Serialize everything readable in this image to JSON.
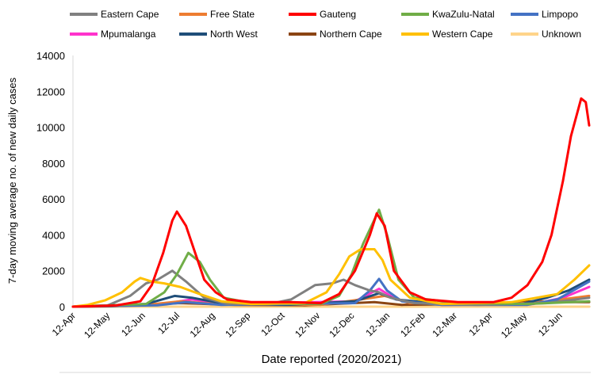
{
  "chart_data": {
    "type": "line",
    "title": "",
    "xlabel": "Date reported (2020/2021)",
    "ylabel": "7-day moving average no. of new daily cases",
    "x_range": [
      "2020-04-12",
      "2021-07-08"
    ],
    "ylim": [
      0,
      14000
    ],
    "y_ticks": [
      "0",
      "2000",
      "4000",
      "6000",
      "8000",
      "10000",
      "12000",
      "14000"
    ],
    "x_ticks": [
      {
        "label": "12-Apr",
        "date": "2020-04-12"
      },
      {
        "label": "12-May",
        "date": "2020-05-12"
      },
      {
        "label": "12-Jun",
        "date": "2020-06-12"
      },
      {
        "label": "12-Jul",
        "date": "2020-07-12"
      },
      {
        "label": "12-Aug",
        "date": "2020-08-12"
      },
      {
        "label": "12-Sep",
        "date": "2020-09-12"
      },
      {
        "label": "12-Oct",
        "date": "2020-10-12"
      },
      {
        "label": "12-Nov",
        "date": "2020-11-12"
      },
      {
        "label": "12-Dec",
        "date": "2020-12-12"
      },
      {
        "label": "12-Jan",
        "date": "2021-01-12"
      },
      {
        "label": "12-Feb",
        "date": "2021-02-12"
      },
      {
        "label": "12-Mar",
        "date": "2021-03-12"
      },
      {
        "label": "12-Apr",
        "date": "2021-04-12"
      },
      {
        "label": "12-May",
        "date": "2021-05-12"
      },
      {
        "label": "12-Jun",
        "date": "2021-06-12"
      }
    ],
    "grid": false,
    "legend_position": "top",
    "series": [
      {
        "name": "Eastern Cape",
        "color": "#808080",
        "points": [
          [
            "2020-04-12",
            0
          ],
          [
            "2020-05-12",
            60
          ],
          [
            "2020-06-01",
            600
          ],
          [
            "2020-06-15",
            1300
          ],
          [
            "2020-06-25",
            1500
          ],
          [
            "2020-07-08",
            2000
          ],
          [
            "2020-07-20",
            1400
          ],
          [
            "2020-08-05",
            500
          ],
          [
            "2020-08-25",
            150
          ],
          [
            "2020-10-01",
            150
          ],
          [
            "2020-10-20",
            400
          ],
          [
            "2020-11-10",
            1200
          ],
          [
            "2020-11-25",
            1300
          ],
          [
            "2020-12-05",
            1500
          ],
          [
            "2020-12-15",
            1200
          ],
          [
            "2020-12-28",
            900
          ],
          [
            "2021-01-05",
            800
          ],
          [
            "2021-01-15",
            500
          ],
          [
            "2021-02-05",
            200
          ],
          [
            "2021-04-01",
            100
          ],
          [
            "2021-06-01",
            200
          ],
          [
            "2021-07-08",
            500
          ]
        ]
      },
      {
        "name": "Free State",
        "color": "#ed7d31",
        "points": [
          [
            "2020-04-12",
            0
          ],
          [
            "2020-06-15",
            100
          ],
          [
            "2020-07-15",
            300
          ],
          [
            "2020-08-15",
            150
          ],
          [
            "2020-11-15",
            100
          ],
          [
            "2020-12-20",
            400
          ],
          [
            "2021-01-10",
            600
          ],
          [
            "2021-02-01",
            200
          ],
          [
            "2021-05-01",
            150
          ],
          [
            "2021-06-01",
            300
          ],
          [
            "2021-07-08",
            600
          ]
        ]
      },
      {
        "name": "Gauteng",
        "color": "#ff0000",
        "points": [
          [
            "2020-04-12",
            0
          ],
          [
            "2020-05-20",
            70
          ],
          [
            "2020-06-10",
            300
          ],
          [
            "2020-06-20",
            1200
          ],
          [
            "2020-06-30",
            3000
          ],
          [
            "2020-07-08",
            4800
          ],
          [
            "2020-07-12",
            5300
          ],
          [
            "2020-07-20",
            4500
          ],
          [
            "2020-07-28",
            3000
          ],
          [
            "2020-08-05",
            1500
          ],
          [
            "2020-08-15",
            800
          ],
          [
            "2020-08-25",
            400
          ],
          [
            "2020-09-15",
            250
          ],
          [
            "2020-10-20",
            250
          ],
          [
            "2020-11-15",
            200
          ],
          [
            "2020-12-01",
            700
          ],
          [
            "2020-12-15",
            2000
          ],
          [
            "2020-12-28",
            4000
          ],
          [
            "2021-01-03",
            5200
          ],
          [
            "2021-01-10",
            4500
          ],
          [
            "2021-01-18",
            2000
          ],
          [
            "2021-02-01",
            800
          ],
          [
            "2021-02-15",
            400
          ],
          [
            "2021-03-15",
            250
          ],
          [
            "2021-04-15",
            250
          ],
          [
            "2021-05-01",
            500
          ],
          [
            "2021-05-15",
            1200
          ],
          [
            "2021-05-28",
            2500
          ],
          [
            "2021-06-05",
            4000
          ],
          [
            "2021-06-15",
            7000
          ],
          [
            "2021-06-22",
            9500
          ],
          [
            "2021-07-01",
            11600
          ],
          [
            "2021-07-05",
            11400
          ],
          [
            "2021-07-08",
            10100
          ]
        ]
      },
      {
        "name": "KwaZulu-Natal",
        "color": "#70ad47",
        "points": [
          [
            "2020-04-12",
            0
          ],
          [
            "2020-06-15",
            150
          ],
          [
            "2020-07-01",
            800
          ],
          [
            "2020-07-12",
            1800
          ],
          [
            "2020-07-22",
            3000
          ],
          [
            "2020-08-01",
            2500
          ],
          [
            "2020-08-10",
            1500
          ],
          [
            "2020-08-22",
            500
          ],
          [
            "2020-09-15",
            200
          ],
          [
            "2020-11-15",
            150
          ],
          [
            "2020-12-01",
            600
          ],
          [
            "2020-12-12",
            1800
          ],
          [
            "2020-12-22",
            3500
          ],
          [
            "2021-01-05",
            5400
          ],
          [
            "2021-01-12",
            4000
          ],
          [
            "2021-01-22",
            1500
          ],
          [
            "2021-02-05",
            500
          ],
          [
            "2021-03-15",
            200
          ],
          [
            "2021-05-15",
            150
          ],
          [
            "2021-07-08",
            300
          ]
        ]
      },
      {
        "name": "Limpopo",
        "color": "#4472c4",
        "points": [
          [
            "2020-04-12",
            0
          ],
          [
            "2020-06-25",
            80
          ],
          [
            "2020-07-20",
            250
          ],
          [
            "2020-08-20",
            100
          ],
          [
            "2020-12-15",
            200
          ],
          [
            "2020-12-28",
            900
          ],
          [
            "2021-01-05",
            1550
          ],
          [
            "2021-01-12",
            900
          ],
          [
            "2021-01-25",
            300
          ],
          [
            "2021-03-01",
            100
          ],
          [
            "2021-05-15",
            100
          ],
          [
            "2021-06-10",
            400
          ],
          [
            "2021-07-08",
            1400
          ]
        ]
      },
      {
        "name": "Mpumalanga",
        "color": "#ff33cc",
        "points": [
          [
            "2020-04-12",
            0
          ],
          [
            "2020-06-25",
            100
          ],
          [
            "2020-07-25",
            400
          ],
          [
            "2020-08-25",
            150
          ],
          [
            "2020-12-15",
            300
          ],
          [
            "2021-01-05",
            1000
          ],
          [
            "2021-01-20",
            400
          ],
          [
            "2021-03-01",
            100
          ],
          [
            "2021-05-20",
            150
          ],
          [
            "2021-06-15",
            500
          ],
          [
            "2021-07-08",
            1100
          ]
        ]
      },
      {
        "name": "North West",
        "color": "#1f4e79",
        "points": [
          [
            "2020-04-12",
            0
          ],
          [
            "2020-06-15",
            150
          ],
          [
            "2020-07-10",
            600
          ],
          [
            "2020-07-25",
            500
          ],
          [
            "2020-08-20",
            200
          ],
          [
            "2020-10-15",
            100
          ],
          [
            "2020-12-15",
            300
          ],
          [
            "2021-01-05",
            750
          ],
          [
            "2021-01-20",
            400
          ],
          [
            "2021-03-01",
            150
          ],
          [
            "2021-05-10",
            150
          ],
          [
            "2021-06-01",
            500
          ],
          [
            "2021-06-20",
            900
          ],
          [
            "2021-07-08",
            1500
          ]
        ]
      },
      {
        "name": "Northern Cape",
        "color": "#8b4513",
        "points": [
          [
            "2020-04-12",
            0
          ],
          [
            "2020-05-15",
            20
          ],
          [
            "2020-07-15",
            200
          ],
          [
            "2020-09-01",
            100
          ],
          [
            "2020-11-01",
            80
          ],
          [
            "2021-01-01",
            250
          ],
          [
            "2021-01-25",
            100
          ],
          [
            "2021-04-01",
            150
          ],
          [
            "2021-05-20",
            300
          ],
          [
            "2021-06-15",
            250
          ],
          [
            "2021-07-08",
            250
          ]
        ]
      },
      {
        "name": "Western Cape",
        "color": "#ffc000",
        "points": [
          [
            "2020-04-12",
            0
          ],
          [
            "2020-04-25",
            100
          ],
          [
            "2020-05-10",
            350
          ],
          [
            "2020-05-25",
            800
          ],
          [
            "2020-06-05",
            1400
          ],
          [
            "2020-06-10",
            1600
          ],
          [
            "2020-06-20",
            1400
          ],
          [
            "2020-07-01",
            1300
          ],
          [
            "2020-07-15",
            1100
          ],
          [
            "2020-08-01",
            700
          ],
          [
            "2020-08-20",
            300
          ],
          [
            "2020-09-15",
            150
          ],
          [
            "2020-11-01",
            200
          ],
          [
            "2020-11-20",
            800
          ],
          [
            "2020-12-01",
            1800
          ],
          [
            "2020-12-10",
            2800
          ],
          [
            "2020-12-20",
            3200
          ],
          [
            "2021-01-01",
            3200
          ],
          [
            "2021-01-08",
            2600
          ],
          [
            "2021-01-15",
            1500
          ],
          [
            "2021-02-01",
            500
          ],
          [
            "2021-03-01",
            150
          ],
          [
            "2021-05-01",
            250
          ],
          [
            "2021-06-10",
            700
          ],
          [
            "2021-06-25",
            1500
          ],
          [
            "2021-07-08",
            2300
          ]
        ]
      },
      {
        "name": "Unknown",
        "color": "#ffd48a",
        "points": [
          [
            "2020-04-12",
            0
          ],
          [
            "2021-07-08",
            0
          ]
        ]
      }
    ]
  }
}
